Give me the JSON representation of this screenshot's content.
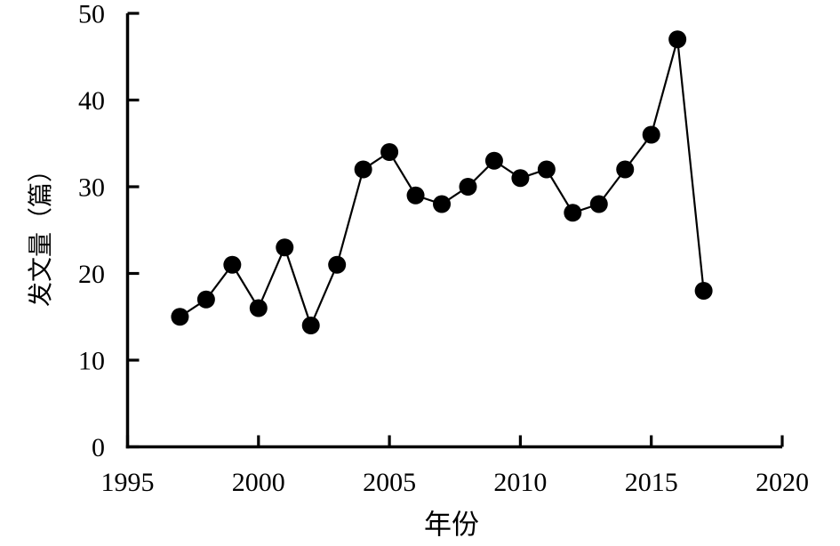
{
  "chart_data": {
    "type": "line",
    "title": "",
    "xlabel": "年份",
    "ylabel": "发文量（篇）",
    "x": [
      1997,
      1998,
      1999,
      2000,
      2001,
      2002,
      2003,
      2004,
      2005,
      2006,
      2007,
      2008,
      2009,
      2010,
      2011,
      2012,
      2013,
      2014,
      2015,
      2016,
      2017
    ],
    "values": [
      15,
      17,
      21,
      16,
      23,
      14,
      21,
      32,
      34,
      29,
      28,
      30,
      33,
      31,
      32,
      27,
      28,
      32,
      36,
      47,
      18
    ],
    "xlim": [
      1995,
      2020
    ],
    "ylim": [
      0,
      50
    ],
    "xticks": [
      1995,
      2000,
      2005,
      2010,
      2015,
      2020
    ],
    "yticks": [
      0,
      10,
      20,
      30,
      40,
      50
    ],
    "grid": false,
    "legend_position": "none",
    "marker": "filled-circle",
    "line_color": "#000000",
    "marker_color": "#000000",
    "axis_color": "#000000",
    "background_color": "#ffffff"
  }
}
